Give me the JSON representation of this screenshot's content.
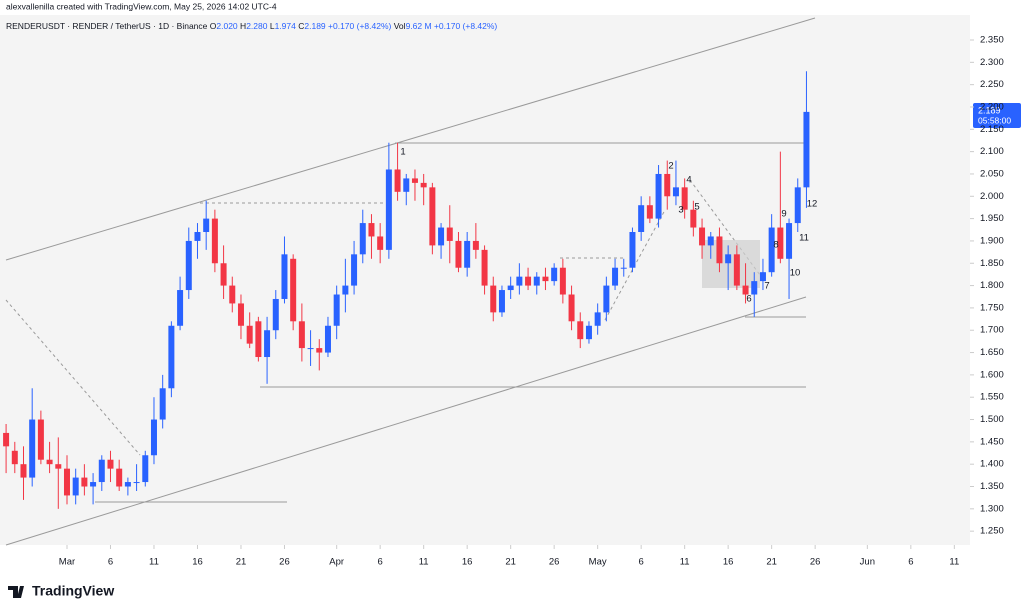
{
  "header": {
    "credit": "alexvallenilla created with TradingView.com, May 25, 2026 14:02 UTC-4",
    "symbol": "RENDERUSDT · RENDER / TetherUS · 1D · Binance",
    "quote": [
      {
        "label": "O",
        "value": "2.020"
      },
      {
        "label": "H",
        "value": "2.280"
      },
      {
        "label": "L",
        "value": "1.974"
      },
      {
        "label": "C",
        "value": "2.189"
      }
    ],
    "change": "+0.170 (+8.42%)",
    "volume_label": "Vol",
    "volume": "9.62 M",
    "volume_change": "+0.170 (+8.42%)"
  },
  "price_tag": {
    "price": "2.189",
    "countdown": "05:58:00"
  },
  "footer": {
    "logo": "TradingView"
  },
  "chart_data": {
    "type": "candlestick",
    "up_color": "#2962ff",
    "down_color": "#f23645",
    "xlim": [
      -7.7,
      103.8
    ],
    "ylim": [
      1.219,
      2.406
    ],
    "xticks": [
      {
        "value": 0,
        "label": "Mar"
      },
      {
        "value": 5,
        "label": "6"
      },
      {
        "value": 10,
        "label": "11"
      },
      {
        "value": 15,
        "label": "16"
      },
      {
        "value": 20,
        "label": "21"
      },
      {
        "value": 25,
        "label": "26"
      },
      {
        "value": 31,
        "label": "Apr"
      },
      {
        "value": 36,
        "label": "6"
      },
      {
        "value": 41,
        "label": "11"
      },
      {
        "value": 46,
        "label": "16"
      },
      {
        "value": 51,
        "label": "21"
      },
      {
        "value": 56,
        "label": "26"
      },
      {
        "value": 61,
        "label": "May"
      },
      {
        "value": 66,
        "label": "6"
      },
      {
        "value": 71,
        "label": "11"
      },
      {
        "value": 76,
        "label": "16"
      },
      {
        "value": 81,
        "label": "21"
      },
      {
        "value": 86,
        "label": "26"
      },
      {
        "value": 92,
        "label": "Jun"
      },
      {
        "value": 97,
        "label": "6"
      },
      {
        "value": 102,
        "label": "11"
      }
    ],
    "yticks": [
      {
        "value": 1.25,
        "label": "1.250"
      },
      {
        "value": 1.3,
        "label": "1.300"
      },
      {
        "value": 1.35,
        "label": "1.350"
      },
      {
        "value": 1.4,
        "label": "1.400"
      },
      {
        "value": 1.45,
        "label": "1.450"
      },
      {
        "value": 1.5,
        "label": "1.500"
      },
      {
        "value": 1.55,
        "label": "1.550"
      },
      {
        "value": 1.6,
        "label": "1.600"
      },
      {
        "value": 1.65,
        "label": "1.650"
      },
      {
        "value": 1.7,
        "label": "1.700"
      },
      {
        "value": 1.75,
        "label": "1.750"
      },
      {
        "value": 1.8,
        "label": "1.800"
      },
      {
        "value": 1.85,
        "label": "1.850"
      },
      {
        "value": 1.9,
        "label": "1.900"
      },
      {
        "value": 1.95,
        "label": "1.950"
      },
      {
        "value": 2.0,
        "label": "2.000"
      },
      {
        "value": 2.05,
        "label": "2.050"
      },
      {
        "value": 2.1,
        "label": "2.100"
      },
      {
        "value": 2.15,
        "label": "2.150"
      },
      {
        "value": 2.2,
        "label": "2.200"
      },
      {
        "value": 2.25,
        "label": "2.250"
      },
      {
        "value": 2.3,
        "label": "2.300"
      },
      {
        "value": 2.35,
        "label": "2.350"
      }
    ],
    "x": [
      -7,
      -6,
      -5,
      -4,
      -3,
      -2,
      -1,
      0,
      1,
      2,
      3,
      4,
      5,
      6,
      7,
      8,
      9,
      10,
      11,
      12,
      13,
      14,
      15,
      16,
      17,
      18,
      19,
      20,
      21,
      22,
      23,
      24,
      25,
      26,
      27,
      28,
      29,
      30,
      31,
      32,
      33,
      34,
      35,
      36,
      37,
      38,
      39,
      40,
      41,
      42,
      43,
      44,
      45,
      46,
      47,
      48,
      49,
      50,
      51,
      52,
      53,
      54,
      55,
      56,
      57,
      58,
      59,
      60,
      61,
      62,
      63,
      64,
      65,
      66,
      67,
      68,
      69,
      70,
      71,
      72,
      73,
      74,
      75,
      76,
      77,
      78,
      79,
      80,
      81,
      82,
      83,
      84,
      85
    ],
    "open": [
      1.47,
      1.43,
      1.4,
      1.37,
      1.5,
      1.41,
      1.4,
      1.39,
      1.33,
      1.37,
      1.35,
      1.36,
      1.41,
      1.39,
      1.35,
      1.36,
      1.36,
      1.42,
      1.5,
      1.57,
      1.71,
      1.79,
      1.9,
      1.92,
      1.95,
      1.85,
      1.8,
      1.76,
      1.71,
      1.72,
      1.64,
      1.7,
      1.77,
      1.86,
      1.72,
      1.66,
      1.66,
      1.65,
      1.71,
      1.78,
      1.8,
      1.87,
      1.94,
      1.91,
      1.88,
      2.06,
      2.01,
      2.04,
      2.03,
      2.02,
      1.89,
      1.93,
      1.9,
      1.84,
      1.9,
      1.88,
      1.8,
      1.74,
      1.79,
      1.8,
      1.82,
      1.8,
      1.82,
      1.81,
      1.84,
      1.78,
      1.72,
      1.68,
      1.71,
      1.74,
      1.8,
      1.84,
      1.84,
      1.92,
      1.98,
      1.95,
      2.05,
      2.0,
      2.02,
      1.97,
      1.93,
      1.89,
      1.91,
      1.85,
      1.87,
      1.8,
      1.78,
      1.81,
      1.83,
      1.93,
      1.86,
      1.94,
      2.02
    ],
    "high": [
      1.49,
      1.45,
      1.44,
      1.57,
      1.52,
      1.45,
      1.46,
      1.42,
      1.39,
      1.4,
      1.38,
      1.42,
      1.43,
      1.41,
      1.37,
      1.4,
      1.43,
      1.55,
      1.6,
      1.72,
      1.82,
      1.93,
      1.94,
      1.99,
      1.97,
      1.89,
      1.82,
      1.78,
      1.74,
      1.73,
      1.73,
      1.79,
      1.91,
      1.87,
      1.76,
      1.7,
      1.68,
      1.73,
      1.8,
      1.86,
      1.9,
      1.97,
      1.96,
      1.94,
      2.12,
      2.12,
      2.05,
      2.06,
      2.05,
      2.03,
      1.94,
      1.98,
      1.92,
      1.92,
      1.94,
      1.89,
      1.82,
      1.8,
      1.82,
      1.85,
      1.84,
      1.83,
      1.84,
      1.85,
      1.86,
      1.8,
      1.74,
      1.72,
      1.76,
      1.82,
      1.86,
      1.86,
      1.93,
      2.0,
      2.0,
      2.07,
      2.08,
      2.08,
      2.04,
      1.99,
      1.95,
      1.92,
      1.93,
      1.89,
      1.89,
      1.85,
      1.83,
      1.86,
      1.96,
      2.1,
      1.95,
      2.04,
      2.28
    ],
    "low": [
      1.38,
      1.38,
      1.32,
      1.35,
      1.4,
      1.38,
      1.3,
      1.31,
      1.31,
      1.33,
      1.31,
      1.34,
      1.36,
      1.34,
      1.33,
      1.34,
      1.35,
      1.4,
      1.48,
      1.55,
      1.7,
      1.77,
      1.86,
      1.88,
      1.83,
      1.77,
      1.74,
      1.68,
      1.66,
      1.63,
      1.58,
      1.68,
      1.76,
      1.7,
      1.63,
      1.62,
      1.61,
      1.64,
      1.68,
      1.74,
      1.78,
      1.85,
      1.86,
      1.85,
      1.86,
      1.99,
      1.98,
      1.99,
      1.98,
      1.87,
      1.86,
      1.85,
      1.83,
      1.82,
      1.86,
      1.78,
      1.72,
      1.73,
      1.77,
      1.78,
      1.79,
      1.78,
      1.79,
      1.8,
      1.76,
      1.7,
      1.66,
      1.67,
      1.69,
      1.72,
      1.79,
      1.82,
      1.83,
      1.9,
      1.94,
      1.93,
      1.97,
      1.98,
      1.95,
      1.91,
      1.86,
      1.86,
      1.83,
      1.79,
      1.79,
      1.76,
      1.73,
      1.79,
      1.82,
      1.85,
      1.77,
      1.92,
      1.974
    ],
    "close": [
      1.44,
      1.4,
      1.37,
      1.5,
      1.41,
      1.4,
      1.39,
      1.33,
      1.37,
      1.35,
      1.36,
      1.41,
      1.39,
      1.35,
      1.36,
      1.36,
      1.42,
      1.5,
      1.57,
      1.71,
      1.79,
      1.9,
      1.92,
      1.95,
      1.85,
      1.8,
      1.76,
      1.71,
      1.67,
      1.64,
      1.7,
      1.77,
      1.87,
      1.72,
      1.66,
      1.66,
      1.65,
      1.71,
      1.78,
      1.8,
      1.87,
      1.94,
      1.91,
      1.88,
      2.06,
      2.01,
      2.04,
      2.03,
      2.02,
      1.89,
      1.93,
      1.9,
      1.84,
      1.9,
      1.88,
      1.8,
      1.74,
      1.79,
      1.8,
      1.82,
      1.8,
      1.82,
      1.81,
      1.84,
      1.78,
      1.72,
      1.68,
      1.71,
      1.74,
      1.8,
      1.84,
      1.84,
      1.92,
      1.98,
      1.95,
      2.05,
      2.0,
      2.02,
      1.97,
      1.93,
      1.89,
      1.91,
      1.85,
      1.87,
      1.8,
      1.78,
      1.81,
      1.83,
      1.93,
      1.86,
      1.94,
      2.02,
      2.189
    ],
    "annotations": [
      "1",
      "2",
      "3",
      "4",
      "5",
      "6",
      "7",
      "8",
      "9",
      "10",
      "11",
      "12"
    ]
  }
}
